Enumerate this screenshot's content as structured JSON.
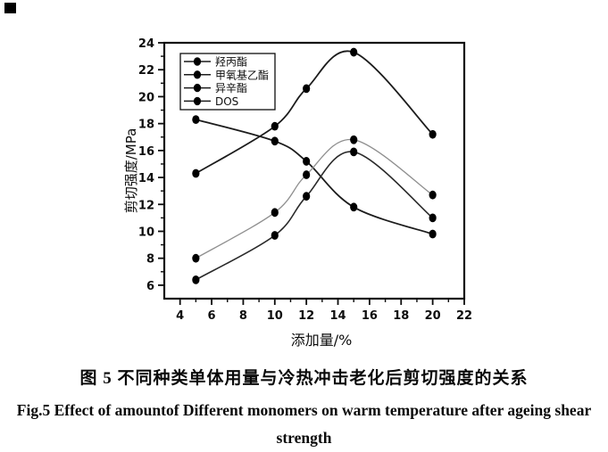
{
  "figure": {
    "caption_zh": "图 5 不同种类单体用量与冷热冲击老化后剪切强度的关系",
    "caption_en_line1": "Fig.5 Effect of amountof Different monomers on warm temperature after ageing shear",
    "caption_en_line2": "strength"
  },
  "chart_data": {
    "type": "line",
    "title": "",
    "xlabel": "添加量/%",
    "ylabel": "剪切强度/MPa",
    "x": [
      5,
      10,
      12,
      15,
      20
    ],
    "series": [
      {
        "name": "羟丙酯",
        "values": [
          14.3,
          17.8,
          20.6,
          23.3,
          17.2
        ],
        "color": "#1c1c1c",
        "width": 1.8
      },
      {
        "name": "甲氧基乙酯",
        "values": [
          18.3,
          16.7,
          15.2,
          11.8,
          9.8
        ],
        "color": "#1c1c1c",
        "width": 1.8
      },
      {
        "name": "异辛酯",
        "values": [
          8.0,
          11.4,
          14.2,
          16.8,
          12.7
        ],
        "color": "#8f8f8f",
        "width": 1.3
      },
      {
        "name": "DOS",
        "values": [
          6.4,
          9.7,
          12.6,
          15.9,
          11.0
        ],
        "color": "#2a2a2a",
        "width": 1.6
      }
    ],
    "xlim": [
      3,
      22
    ],
    "ylim": [
      5,
      24
    ],
    "x_ticks": [
      4,
      6,
      8,
      10,
      12,
      14,
      16,
      18,
      20,
      22
    ],
    "y_ticks": [
      6,
      8,
      10,
      12,
      14,
      16,
      18,
      20,
      22,
      24
    ],
    "x_minor_ticks": [
      5,
      7,
      9,
      11,
      13,
      15,
      17,
      19,
      21
    ],
    "y_minor_ticks": [
      7,
      9,
      11,
      13,
      15,
      17,
      19,
      21,
      23
    ],
    "legend_position": "top-left",
    "marker": "filled-circle",
    "grid": false,
    "axis_color": "#0d0d0d"
  }
}
